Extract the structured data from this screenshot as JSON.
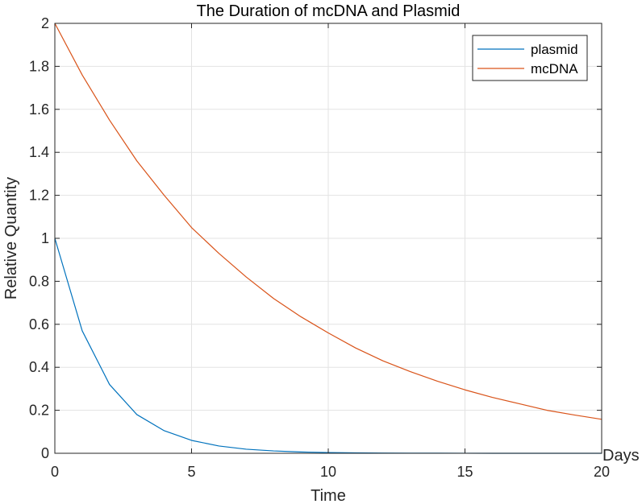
{
  "chart_data": {
    "type": "line",
    "title": "The Duration of mcDNA and Plasmid",
    "xlabel": "Time",
    "ylabel": "Relative Quantity",
    "x_unit_label": "Days",
    "xlim": [
      0,
      20
    ],
    "ylim": [
      0,
      2
    ],
    "xticks": [
      0,
      5,
      10,
      15,
      20
    ],
    "yticks": [
      0,
      0.2,
      0.4,
      0.6,
      0.8,
      1,
      1.2,
      1.4,
      1.6,
      1.8,
      2
    ],
    "xtick_labels": [
      "0",
      "5",
      "10",
      "15",
      "20"
    ],
    "ytick_labels": [
      "0",
      "0.2",
      "0.4",
      "0.6",
      "0.8",
      "1",
      "1.2",
      "1.4",
      "1.6",
      "1.8",
      "2"
    ],
    "grid": true,
    "legend_position": "top-right",
    "x": [
      0,
      1,
      2,
      3,
      4,
      5,
      6,
      7,
      8,
      9,
      10,
      11,
      12,
      13,
      14,
      15,
      16,
      17,
      18,
      19,
      20
    ],
    "series": [
      {
        "name": "plasmid",
        "color": "#0072BD",
        "values": [
          1.0,
          0.57,
          0.32,
          0.18,
          0.105,
          0.06,
          0.034,
          0.019,
          0.011,
          0.006,
          0.0035,
          0.002,
          0.001,
          0.0006,
          0.0004,
          0.0002,
          0.0001,
          0.0001,
          0.0,
          0.0,
          0.0
        ]
      },
      {
        "name": "mcDNA",
        "color": "#D95319",
        "values": [
          2.0,
          1.76,
          1.55,
          1.36,
          1.2,
          1.05,
          0.93,
          0.82,
          0.72,
          0.635,
          0.56,
          0.49,
          0.43,
          0.38,
          0.335,
          0.295,
          0.26,
          0.23,
          0.2,
          0.178,
          0.158
        ]
      }
    ]
  }
}
